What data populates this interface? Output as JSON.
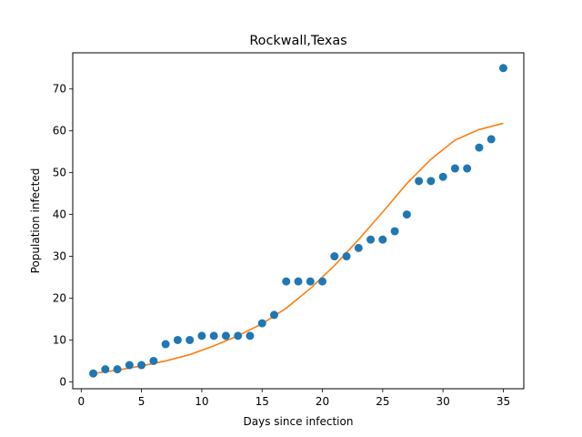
{
  "chart_data": {
    "type": "scatter",
    "title": "Rockwall,Texas",
    "xlabel": "Days since infection",
    "ylabel": "Population infected",
    "xlim": [
      -0.7,
      36.7
    ],
    "ylim": [
      -1.65,
      78.65
    ],
    "xticks": [
      0,
      5,
      10,
      15,
      20,
      25,
      30,
      35
    ],
    "yticks": [
      0,
      10,
      20,
      30,
      40,
      50,
      60,
      70
    ],
    "grid": false,
    "series": [
      {
        "kind": "scatter",
        "color": "#1f77b4",
        "x": [
          1,
          2,
          3,
          4,
          5,
          6,
          7,
          8,
          9,
          10,
          11,
          12,
          13,
          14,
          15,
          16,
          17,
          18,
          19,
          20,
          21,
          22,
          23,
          24,
          25,
          26,
          27,
          28,
          29,
          30,
          31,
          32,
          33,
          34,
          35
        ],
        "y": [
          2,
          3,
          3,
          4,
          4,
          5,
          9,
          10,
          10,
          11,
          11,
          11,
          11,
          11,
          14,
          16,
          24,
          24,
          24,
          24,
          30,
          30,
          32,
          34,
          34,
          36,
          40,
          48,
          48,
          49,
          51,
          51,
          56,
          58,
          75
        ]
      },
      {
        "kind": "line",
        "color": "#ff7f0e",
        "x": [
          1,
          3,
          5,
          7,
          9,
          11,
          13,
          15,
          17,
          19,
          21,
          23,
          25,
          27,
          29,
          31,
          33,
          35
        ],
        "y": [
          2,
          2.8,
          3.8,
          5.0,
          6.5,
          8.6,
          11.0,
          13.9,
          17.6,
          22.3,
          27.8,
          34.0,
          40.6,
          47.4,
          53.2,
          57.8,
          60.3,
          61.8
        ]
      }
    ]
  }
}
